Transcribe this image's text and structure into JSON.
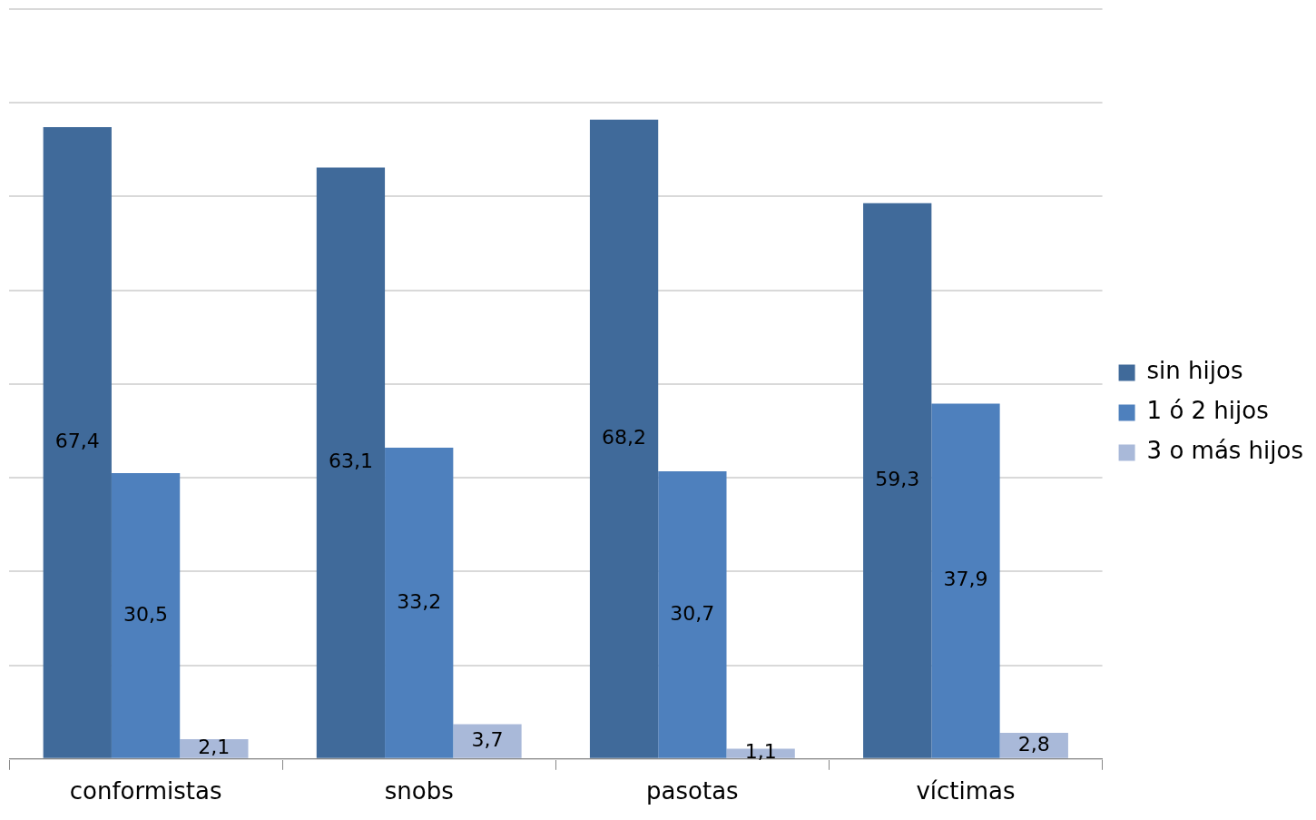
{
  "chart_data": {
    "type": "bar",
    "categories": [
      "conformistas",
      "snobs",
      "pasotas",
      "víctimas"
    ],
    "series": [
      {
        "name": "sin hijos",
        "color": "#406a9a",
        "values": [
          67.4,
          63.1,
          68.2,
          59.3
        ],
        "value_labels": [
          "67,4",
          "63,1",
          "68,2",
          "59,3"
        ]
      },
      {
        "name": "1 ó 2 hijos",
        "color": "#4e80bd",
        "values": [
          30.5,
          33.2,
          30.7,
          37.9
        ],
        "value_labels": [
          "30,5",
          "33,2",
          "30,7",
          "37,9"
        ]
      },
      {
        "name": "3 o más hijos",
        "color": "#a9b9d9",
        "values": [
          2.1,
          3.7,
          1.1,
          2.8
        ],
        "value_labels": [
          "2,1",
          "3,7",
          "1,1",
          "2,8"
        ]
      }
    ],
    "tick_labels": "x",
    "grid": "y",
    "legend": "right"
  }
}
